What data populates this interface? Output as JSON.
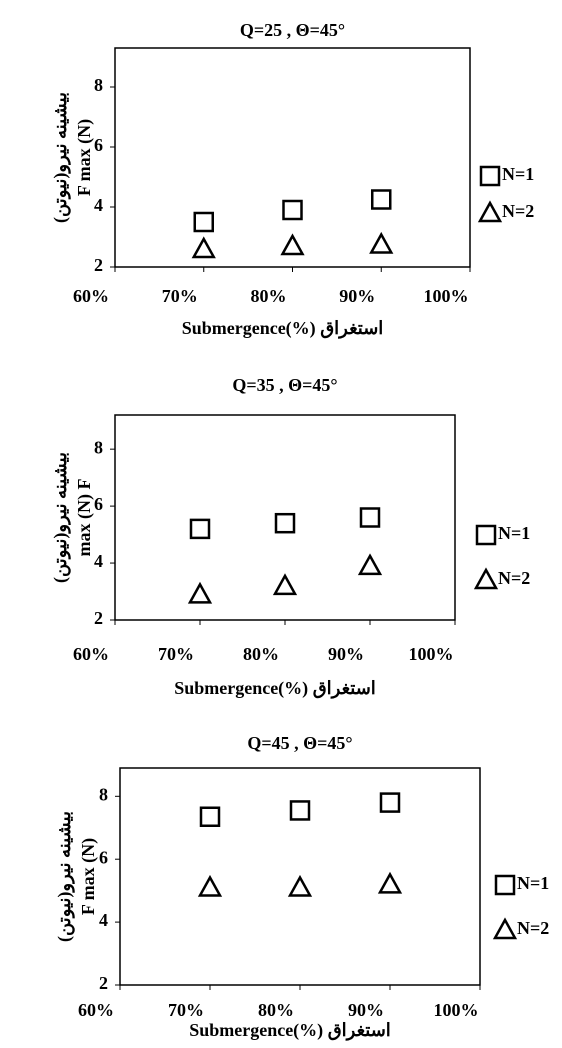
{
  "chart_data": [
    {
      "type": "scatter",
      "title": "Q=25 , Θ=45°",
      "ylabel": [
        "بیشینه نیرو(نیوتن)",
        "F max (N)"
      ],
      "xlabel": "Submergence(%)  استغراق",
      "x": [
        70,
        80,
        90
      ],
      "xlim": [
        60,
        100
      ],
      "xticks": [
        {
          "value": 60,
          "label": "60%"
        },
        {
          "value": 70,
          "label": "70%"
        },
        {
          "value": 80,
          "label": "80%"
        },
        {
          "value": 90,
          "label": "90%"
        },
        {
          "value": 100,
          "label": "100%"
        }
      ],
      "ylim": [
        2,
        9.3
      ],
      "yticks": [
        2,
        4,
        6,
        8
      ],
      "series": [
        {
          "name": "N=1",
          "color": "#000000",
          "marker": "square",
          "values": [
            3.5,
            3.9,
            4.25
          ]
        },
        {
          "name": "N=2",
          "color": "#000000",
          "marker": "triangle",
          "values": [
            2.6,
            2.7,
            2.75
          ]
        }
      ]
    },
    {
      "type": "scatter",
      "title": "Q=35 , Θ=45°",
      "ylabel": [
        "بیشینه نیرو(نیوتن)",
        "max (N) F"
      ],
      "xlabel": "Submergence(%)  استغراق",
      "x": [
        70,
        80,
        90
      ],
      "xlim": [
        60,
        100
      ],
      "xticks": [
        {
          "value": 60,
          "label": "60%"
        },
        {
          "value": 70,
          "label": "70%"
        },
        {
          "value": 80,
          "label": "80%"
        },
        {
          "value": 90,
          "label": "90%"
        },
        {
          "value": 100,
          "label": "100%"
        }
      ],
      "ylim": [
        2,
        9.2
      ],
      "yticks": [
        2,
        4,
        6,
        8
      ],
      "series": [
        {
          "name": "N=1",
          "color": "#000000",
          "marker": "square",
          "values": [
            5.2,
            5.4,
            5.6
          ]
        },
        {
          "name": "N=2",
          "color": "#000000",
          "marker": "triangle",
          "values": [
            2.9,
            3.2,
            3.9
          ]
        }
      ]
    },
    {
      "type": "scatter",
      "title": "Q=45 , Θ=45°",
      "ylabel": [
        "بیشینه نیرو(نیوتن)",
        "F max (N)"
      ],
      "xlabel": "Submergence(%)  استغراق",
      "x": [
        70,
        80,
        90
      ],
      "xlim": [
        60,
        100
      ],
      "xticks": [
        {
          "value": 60,
          "label": "60%"
        },
        {
          "value": 70,
          "label": "70%"
        },
        {
          "value": 80,
          "label": "80%"
        },
        {
          "value": 90,
          "label": "90%"
        },
        {
          "value": 100,
          "label": "100%"
        }
      ],
      "ylim": [
        2,
        8.9
      ],
      "yticks": [
        2,
        4,
        6,
        8
      ],
      "series": [
        {
          "name": "N=1",
          "color": "#000000",
          "marker": "square",
          "values": [
            7.35,
            7.55,
            7.8
          ]
        },
        {
          "name": "N=2",
          "color": "#000000",
          "marker": "triangle",
          "values": [
            5.1,
            5.1,
            5.2
          ]
        }
      ]
    }
  ]
}
